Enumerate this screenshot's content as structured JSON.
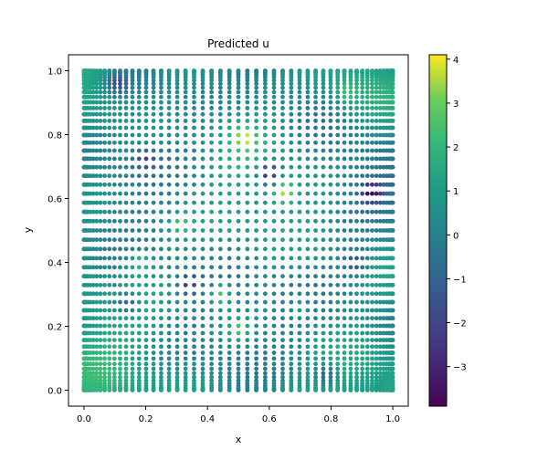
{
  "chart_data": {
    "type": "scatter",
    "title": "Predicted u",
    "xlabel": "x",
    "ylabel": "y",
    "xlim": [
      -0.05,
      1.05
    ],
    "ylim": [
      -0.05,
      1.05
    ],
    "xticks": [
      0.0,
      0.2,
      0.4,
      0.6,
      0.8,
      1.0
    ],
    "yticks": [
      0.0,
      0.2,
      0.4,
      0.6,
      0.8,
      1.0
    ],
    "xtick_labels": [
      "0.0",
      "0.2",
      "0.4",
      "0.6",
      "0.8",
      "1.0"
    ],
    "ytick_labels": [
      "0.0",
      "0.2",
      "0.4",
      "0.6",
      "0.8",
      "1.0"
    ],
    "grid": false,
    "colormap": "viridis",
    "color_range": [
      -3.9,
      4.1
    ],
    "colorbar_ticks": [
      -3,
      -2,
      -1,
      0,
      1,
      2,
      3,
      4
    ],
    "colorbar_tick_labels": [
      "−3",
      "−2",
      "−1",
      "0",
      "1",
      "2",
      "3",
      "4"
    ],
    "point_distribution": "grid points clustered towards the edges in both x and y (Chebyshev-like spacing), 55 x 55 points over [0,1] x [0,1]",
    "grid_points_per_axis": 55,
    "hotspots": [
      {
        "x": 0.65,
        "y": 0.62,
        "value": 3.5
      },
      {
        "x": 0.44,
        "y": 0.3,
        "value": 3.2
      },
      {
        "x": 0.52,
        "y": 0.79,
        "value": 3.0
      },
      {
        "x": 0.18,
        "y": 0.4,
        "value": 2.5
      },
      {
        "x": 0.31,
        "y": 0.52,
        "value": 2.3
      },
      {
        "x": 0.5,
        "y": 0.19,
        "value": 2.6
      },
      {
        "x": 0.85,
        "y": 0.93,
        "value": 1.8
      },
      {
        "x": 0.7,
        "y": 0.26,
        "value": 2.0
      }
    ],
    "coldspots": [
      {
        "x": 0.93,
        "y": 0.62,
        "value": -3.2
      },
      {
        "x": 0.6,
        "y": 0.68,
        "value": -3.6
      },
      {
        "x": 0.34,
        "y": 0.33,
        "value": -2.2
      },
      {
        "x": 0.14,
        "y": 0.27,
        "value": -2.0
      },
      {
        "x": 0.2,
        "y": 0.72,
        "value": -1.8
      },
      {
        "x": 0.88,
        "y": 0.4,
        "value": -1.9
      },
      {
        "x": 0.78,
        "y": 0.05,
        "value": -1.7
      },
      {
        "x": 0.11,
        "y": 0.96,
        "value": -1.6
      }
    ]
  }
}
